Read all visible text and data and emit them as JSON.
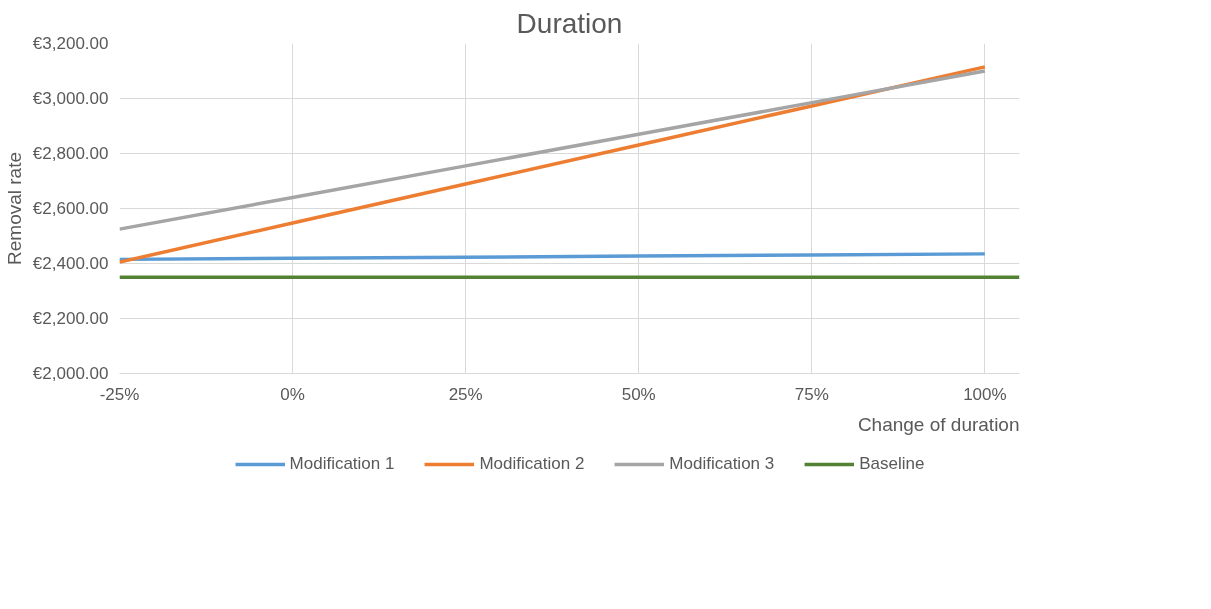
{
  "chart_data": {
    "type": "line",
    "title": "Duration",
    "xlabel": "Change of duration",
    "ylabel": "Removal rate",
    "x": [
      -25,
      0,
      25,
      50,
      75,
      100
    ],
    "series": [
      {
        "name": "Modification 1",
        "color": "#5b9bd5",
        "values": [
          2415,
          2419,
          2423,
          2427,
          2431,
          2435
        ]
      },
      {
        "name": "Modification 2",
        "color": "#ed7d31",
        "values": [
          2405,
          2547,
          2689,
          2831,
          2973,
          3115
        ]
      },
      {
        "name": "Modification 3",
        "color": "#a5a5a5",
        "values": [
          2525,
          2640,
          2755,
          2870,
          2985,
          3100
        ]
      }
    ],
    "ref_lines": [
      {
        "axis": "y",
        "value": 2350,
        "label": "Baseline",
        "color": "#548235"
      }
    ],
    "xlim": [
      -25,
      105
    ],
    "ylim": [
      2000,
      3200
    ],
    "xticks": [
      {
        "value": -25,
        "label": "-25%"
      },
      {
        "value": 0,
        "label": "0%"
      },
      {
        "value": 25,
        "label": "25%"
      },
      {
        "value": 50,
        "label": "50%"
      },
      {
        "value": 75,
        "label": "75%"
      },
      {
        "value": 100,
        "label": "100%"
      }
    ],
    "yticks": [
      {
        "value": 2000,
        "label": "€2,000.00"
      },
      {
        "value": 2200,
        "label": "€2,200.00"
      },
      {
        "value": 2400,
        "label": "€2,400.00"
      },
      {
        "value": 2600,
        "label": "€2,600.00"
      },
      {
        "value": 2800,
        "label": "€2,800.00"
      },
      {
        "value": 3000,
        "label": "€3,000.00"
      },
      {
        "value": 3200,
        "label": "€3,200.00"
      }
    ],
    "grid": true,
    "legend": "bottom",
    "marker": "none",
    "line_style": "solid"
  }
}
